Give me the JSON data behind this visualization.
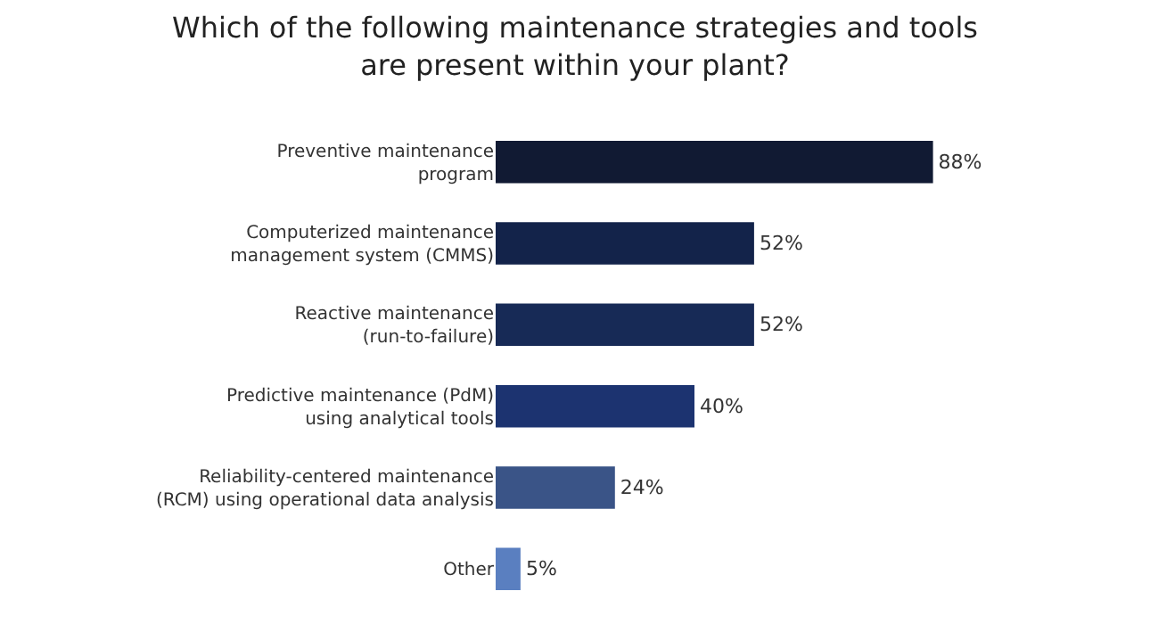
{
  "chart_data": {
    "type": "bar",
    "orientation": "horizontal",
    "data_labels": true,
    "title": "Which of the following maintenance strategies and tools\nare present within your plant?",
    "categories": [
      "Preventive maintenance\nprogram",
      "Computerized maintenance\nmanagement system (CMMS)",
      "Reactive maintenance\n(run-to-failure)",
      "Predictive maintenance (PdM)\nusing analytical tools",
      "Reliability-centered maintenance\n(RCM) using operational data analysis",
      "Other"
    ],
    "values": [
      88,
      52,
      52,
      40,
      24,
      5
    ],
    "value_labels": [
      "88%",
      "52%",
      "52%",
      "40%",
      "24%",
      "5%"
    ],
    "colors": [
      "#111a33",
      "#13234a",
      "#172a56",
      "#1c3370",
      "#3a5487",
      "#5a7fc0"
    ]
  }
}
